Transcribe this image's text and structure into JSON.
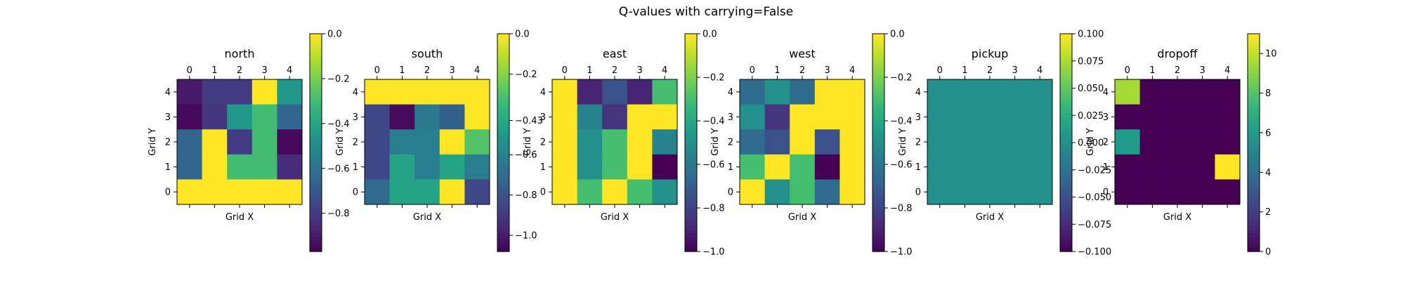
{
  "figure": {
    "title": "Q-values with carrying=False"
  },
  "colors": {
    "colormap": "viridis",
    "viridis_stops": [
      "#440154",
      "#482878",
      "#3e4989",
      "#31688e",
      "#26828e",
      "#1f9e89",
      "#35b779",
      "#6ece58",
      "#b5de2b",
      "#fde725"
    ],
    "axis": "#000000",
    "background": "#ffffff"
  },
  "chart_data": [
    {
      "type": "heatmap",
      "title": "north",
      "xlabel": "Grid X",
      "ylabel": "Grid Y",
      "x_ticks": [
        "0",
        "1",
        "2",
        "3",
        "4"
      ],
      "y_ticks": [
        "4",
        "3",
        "2",
        "1",
        "0"
      ],
      "rows": [
        [
          -0.9,
          -0.8,
          -0.8,
          0.0,
          -0.45
        ],
        [
          -0.95,
          -0.82,
          -0.45,
          -0.3,
          -0.65
        ],
        [
          -0.65,
          0.0,
          -0.8,
          -0.3,
          -0.95
        ],
        [
          -0.65,
          0.0,
          -0.3,
          -0.3,
          -0.85
        ],
        [
          0.0,
          0.0,
          0.0,
          0.0,
          0.0
        ]
      ],
      "colorbar": {
        "vmin": -0.97,
        "vmax": 0.0,
        "ticks": [
          0.0,
          -0.2,
          -0.4,
          -0.6,
          -0.8
        ],
        "tick_labels": [
          "0.0",
          "−0.2",
          "−0.4",
          "−0.6",
          "−0.8"
        ]
      }
    },
    {
      "type": "heatmap",
      "title": "south",
      "xlabel": "Grid X",
      "ylabel": "Grid Y",
      "x_ticks": [
        "0",
        "1",
        "2",
        "3",
        "4"
      ],
      "y_ticks": [
        "4",
        "3",
        "2",
        "1",
        "0"
      ],
      "rows": [
        [
          0.0,
          0.0,
          0.0,
          0.0,
          0.0
        ],
        [
          -0.85,
          -1.05,
          -0.65,
          -0.75,
          0.0
        ],
        [
          -0.85,
          -0.62,
          -0.62,
          0.0,
          -0.3
        ],
        [
          -0.85,
          -0.45,
          -0.62,
          -0.45,
          -0.62
        ],
        [
          -0.7,
          -0.45,
          -0.45,
          0.0,
          -0.85
        ]
      ],
      "colorbar": {
        "vmin": -1.08,
        "vmax": 0.0,
        "ticks": [
          0.0,
          -0.2,
          -0.43,
          -0.6,
          -0.8,
          -1.0
        ],
        "tick_labels": [
          "0.0",
          "−0.2",
          "−0.43",
          "−0.6",
          "−0.8",
          "−1.0"
        ]
      }
    },
    {
      "type": "heatmap",
      "title": "east",
      "xlabel": "Grid X",
      "ylabel": "Grid Y",
      "x_ticks": [
        "0",
        "1",
        "2",
        "3",
        "4"
      ],
      "y_ticks": [
        "4",
        "3",
        "2",
        "1",
        "0"
      ],
      "rows": [
        [
          0.0,
          -0.9,
          -0.75,
          -0.9,
          -0.3
        ],
        [
          0.0,
          -0.55,
          -0.85,
          0.0,
          0.0
        ],
        [
          0.0,
          -0.5,
          -0.3,
          0.0,
          -0.55
        ],
        [
          0.0,
          -0.5,
          -0.3,
          0.0,
          -1.0
        ],
        [
          0.0,
          -0.3,
          0.0,
          -0.3,
          -0.5
        ]
      ],
      "colorbar": {
        "vmin": -1.0,
        "vmax": 0.0,
        "ticks": [
          0.0,
          -0.2,
          -0.4,
          -0.6,
          -0.8,
          -1.0
        ],
        "tick_labels": [
          "0.0",
          "−0.2",
          "−0.4",
          "−0.6",
          "−0.8",
          "−1.0"
        ]
      }
    },
    {
      "type": "heatmap",
      "title": "west",
      "xlabel": "Grid X",
      "ylabel": "Grid Y",
      "x_ticks": [
        "0",
        "1",
        "2",
        "3",
        "4"
      ],
      "y_ticks": [
        "4",
        "3",
        "2",
        "1",
        "0"
      ],
      "rows": [
        [
          -0.65,
          -0.5,
          -0.65,
          0.0,
          0.0
        ],
        [
          -0.5,
          -0.85,
          0.0,
          0.0,
          0.0
        ],
        [
          -0.65,
          -0.75,
          0.0,
          -0.75,
          0.0
        ],
        [
          -0.3,
          0.0,
          -0.3,
          -1.0,
          0.0
        ],
        [
          0.0,
          -0.5,
          -0.3,
          -0.65,
          0.0
        ]
      ],
      "colorbar": {
        "vmin": -1.0,
        "vmax": 0.0,
        "ticks": [
          0.0,
          -0.2,
          -0.4,
          -0.6,
          -0.8,
          -1.0
        ],
        "tick_labels": [
          "0.0",
          "−0.2",
          "−0.4",
          "−0.6",
          "−0.8",
          "−1.0"
        ]
      }
    },
    {
      "type": "heatmap",
      "title": "pickup",
      "xlabel": "Grid X",
      "ylabel": "Grid Y",
      "x_ticks": [
        "0",
        "1",
        "2",
        "3",
        "4"
      ],
      "y_ticks": [
        "4",
        "3",
        "2",
        "1",
        "0"
      ],
      "rows": [
        [
          0,
          0,
          0,
          0,
          0
        ],
        [
          0,
          0,
          0,
          0,
          0
        ],
        [
          0,
          0,
          0,
          0,
          0
        ],
        [
          0,
          0,
          0,
          0,
          0
        ],
        [
          0,
          0,
          0,
          0,
          0
        ]
      ],
      "colorbar": {
        "vmin": -0.1,
        "vmax": 0.1,
        "ticks": [
          0.1,
          0.075,
          0.05,
          0.025,
          0.0,
          -0.025,
          -0.05,
          -0.075,
          -0.1
        ],
        "tick_labels": [
          "0.100",
          "0.075",
          "0.050",
          "0.025",
          "0.000",
          "−0.025",
          "−0.050",
          "−0.075",
          "−0.100"
        ]
      }
    },
    {
      "type": "heatmap",
      "title": "dropoff",
      "xlabel": "Grid X",
      "ylabel": "Grid Y",
      "x_ticks": [
        "0",
        "1",
        "2",
        "3",
        "4"
      ],
      "y_ticks": [
        "4",
        "3",
        "2",
        "1",
        "0"
      ],
      "rows": [
        [
          9.5,
          0,
          0,
          0,
          0
        ],
        [
          0,
          0,
          0,
          0,
          0
        ],
        [
          6.0,
          0,
          0,
          0,
          0
        ],
        [
          0,
          0,
          0,
          0,
          11.0
        ],
        [
          0,
          0,
          0,
          0,
          0
        ]
      ],
      "colorbar": {
        "vmin": 0,
        "vmax": 11.0,
        "ticks": [
          10,
          8,
          6,
          4,
          2,
          0
        ],
        "tick_labels": [
          "10",
          "8",
          "6",
          "4",
          "2",
          "0"
        ]
      }
    }
  ]
}
